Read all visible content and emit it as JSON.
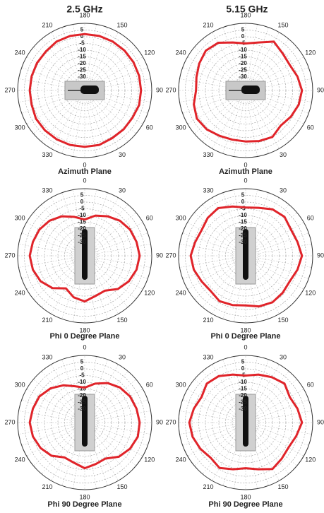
{
  "headers": [
    "2.5 GHz",
    "5.15 GHz"
  ],
  "chart_data": [
    {
      "type": "polar",
      "title": "Azimuth Plane",
      "zero_location": "bottom",
      "direction": "counterclockwise",
      "color": "#e0242a",
      "rlim": [
        -40,
        10
      ],
      "rticks": [
        5,
        0,
        -5,
        -10,
        -15,
        -20,
        -25,
        -30
      ],
      "angle_ticks": [
        0,
        30,
        60,
        90,
        120,
        150,
        180,
        210,
        240,
        270,
        300,
        330
      ],
      "x": [
        0,
        15,
        30,
        45,
        60,
        75,
        90,
        105,
        120,
        135,
        150,
        165,
        180,
        195,
        210,
        225,
        240,
        255,
        270,
        285,
        300,
        315,
        330,
        345
      ],
      "values": [
        2,
        2,
        1,
        1,
        1,
        2,
        2,
        2,
        2,
        2,
        2,
        2,
        2,
        2,
        2,
        1,
        1,
        1,
        1,
        1,
        2,
        2,
        2,
        2
      ]
    },
    {
      "type": "polar",
      "title": "Azimuth Plane",
      "zero_location": "bottom",
      "direction": "counterclockwise",
      "color": "#e0242a",
      "rlim": [
        -40,
        10
      ],
      "rticks": [
        5,
        0,
        -5,
        -10,
        -15,
        -20,
        -25,
        -30
      ],
      "angle_ticks": [
        0,
        30,
        60,
        90,
        120,
        150,
        180,
        210,
        240,
        270,
        300,
        330
      ],
      "x": [
        0,
        15,
        30,
        45,
        60,
        75,
        90,
        105,
        120,
        135,
        150,
        165,
        180,
        195,
        210,
        225,
        240,
        255,
        270,
        285,
        300,
        315,
        330,
        345
      ],
      "values": [
        -2,
        -1,
        0,
        -3,
        -1,
        1,
        2,
        0,
        -2,
        -1,
        2,
        -3,
        -5,
        -3,
        1,
        2,
        0,
        -2,
        -3,
        0,
        2,
        1,
        -1,
        -2
      ]
    },
    {
      "type": "polar",
      "title": "Phi 0 Degree Plane",
      "zero_location": "top",
      "direction": "clockwise",
      "color": "#e0242a",
      "rlim": [
        -40,
        10
      ],
      "rticks": [
        5,
        0,
        -5,
        -10,
        -15,
        -20,
        -25,
        -30
      ],
      "angle_ticks": [
        0,
        30,
        60,
        90,
        120,
        150,
        180,
        210,
        240,
        270,
        300,
        330
      ],
      "x": [
        0,
        15,
        30,
        45,
        60,
        75,
        90,
        105,
        120,
        135,
        150,
        165,
        180,
        195,
        210,
        225,
        240,
        255,
        270,
        285,
        300,
        315,
        330,
        345
      ],
      "values": [
        -13,
        -9,
        -6,
        -3,
        -1,
        0,
        1,
        0,
        -2,
        -5,
        -10,
        -9,
        -6,
        -8,
        -12,
        -6,
        -2,
        0,
        1,
        0,
        -1,
        -3,
        -6,
        -10
      ]
    },
    {
      "type": "polar",
      "title": "Phi 0 Degree Plane",
      "zero_location": "top",
      "direction": "clockwise",
      "color": "#e0242a",
      "rlim": [
        -40,
        10
      ],
      "rticks": [
        5,
        0,
        -5,
        -10,
        -15,
        -20,
        -25,
        -30
      ],
      "angle_ticks": [
        0,
        30,
        60,
        90,
        120,
        150,
        180,
        210,
        240,
        270,
        300,
        330
      ],
      "x": [
        0,
        15,
        30,
        45,
        60,
        75,
        90,
        105,
        120,
        135,
        150,
        165,
        180,
        195,
        210,
        225,
        240,
        255,
        270,
        285,
        300,
        315,
        330,
        345
      ],
      "values": [
        -4,
        -3,
        0,
        1,
        -1,
        0,
        2,
        0,
        -2,
        -1,
        0,
        -1,
        -3,
        -2,
        -1,
        -3,
        -2,
        0,
        1,
        -1,
        -2,
        0,
        1,
        -2
      ]
    },
    {
      "type": "polar",
      "title": "Phi 90 Degree Plane",
      "zero_location": "top",
      "direction": "clockwise",
      "color": "#e0242a",
      "rlim": [
        -40,
        10
      ],
      "rticks": [
        5,
        0,
        -5,
        -10,
        -15,
        -20,
        -25,
        -30
      ],
      "angle_ticks": [
        0,
        30,
        60,
        90,
        120,
        150,
        180,
        210,
        240,
        270,
        300,
        330
      ],
      "x": [
        0,
        15,
        30,
        45,
        60,
        75,
        90,
        105,
        120,
        135,
        150,
        165,
        180,
        195,
        210,
        225,
        240,
        255,
        270,
        285,
        300,
        315,
        330,
        345
      ],
      "values": [
        -14,
        -10,
        -6,
        -3,
        -1,
        0,
        1,
        1,
        -1,
        -4,
        -9,
        -8,
        -6,
        -9,
        -10,
        -5,
        -2,
        0,
        1,
        0,
        -1,
        -4,
        -8,
        -12
      ]
    },
    {
      "type": "polar",
      "title": "Phi 90 Degree Plane",
      "zero_location": "top",
      "direction": "clockwise",
      "color": "#e0242a",
      "rlim": [
        -40,
        10
      ],
      "rticks": [
        5,
        0,
        -5,
        -10,
        -15,
        -20,
        -25,
        -30
      ],
      "angle_ticks": [
        0,
        30,
        60,
        90,
        120,
        150,
        180,
        210,
        240,
        270,
        300,
        330
      ],
      "x": [
        0,
        15,
        30,
        45,
        60,
        75,
        90,
        105,
        120,
        135,
        150,
        165,
        180,
        195,
        210,
        225,
        240,
        255,
        270,
        285,
        300,
        315,
        330,
        345
      ],
      "values": [
        -5,
        -3,
        -1,
        1,
        -2,
        0,
        2,
        -1,
        -3,
        -2,
        0,
        -4,
        -6,
        -4,
        -1,
        -3,
        -1,
        1,
        2,
        0,
        -2,
        1,
        0,
        -3
      ]
    }
  ]
}
